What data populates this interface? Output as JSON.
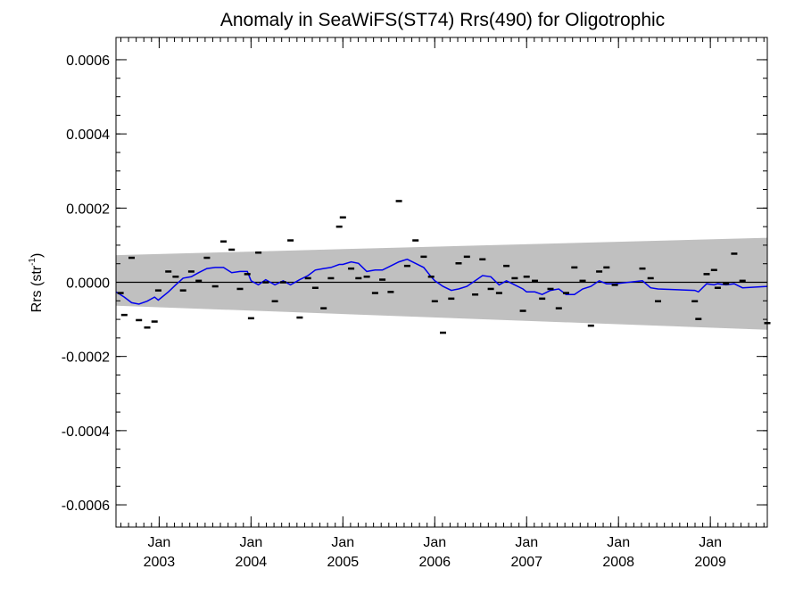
{
  "chart_data": {
    "type": "scatter",
    "title": "Anomaly in SeaWiFS(ST74) Rrs(490) for Oligotrophic",
    "ylabel": {
      "main": "Rrs (str",
      "sup": "-1",
      "end": ")"
    },
    "xlabel": "",
    "xlim": [
      2002.53,
      2009.62
    ],
    "ylim": [
      -0.00066,
      0.00066
    ],
    "y_ticks": [
      {
        "value": -0.0006,
        "label": "-0.0006"
      },
      {
        "value": -0.0004,
        "label": "-0.0004"
      },
      {
        "value": -0.0002,
        "label": "-0.0002"
      },
      {
        "value": 0.0,
        "label": "0.0000"
      },
      {
        "value": 0.0002,
        "label": "0.0002"
      },
      {
        "value": 0.0004,
        "label": "0.0004"
      },
      {
        "value": 0.0006,
        "label": "0.0006"
      }
    ],
    "x_ticks": [
      {
        "value": 2003.0,
        "month": "Jan",
        "year": "2003"
      },
      {
        "value": 2004.0,
        "month": "Jan",
        "year": "2004"
      },
      {
        "value": 2005.0,
        "month": "Jan",
        "year": "2005"
      },
      {
        "value": 2006.0,
        "month": "Jan",
        "year": "2006"
      },
      {
        "value": 2007.0,
        "month": "Jan",
        "year": "2007"
      },
      {
        "value": 2008.0,
        "month": "Jan",
        "year": "2008"
      },
      {
        "value": 2009.0,
        "month": "Jan",
        "year": "2009"
      }
    ],
    "band": {
      "color": "#c0c0c0",
      "x": [
        2002.53,
        2009.62
      ],
      "upper": [
        7.3e-05,
        0.00012
      ],
      "lower": [
        -6.3e-05,
        -0.000128
      ]
    },
    "zero_line": {
      "y": 0.0,
      "color": "#000000"
    },
    "series": [
      {
        "kind": "points",
        "color": "#000000",
        "points": [
          [
            2002.58,
            -2.9e-05
          ],
          [
            2002.62,
            -8.8e-05
          ],
          [
            2002.7,
            6.6e-05
          ],
          [
            2002.78,
            -0.000102
          ],
          [
            2002.87,
            -0.000122
          ],
          [
            2002.95,
            -0.000106
          ],
          [
            2002.99,
            -2.2e-05
          ],
          [
            2003.1,
            2.9e-05
          ],
          [
            2003.18,
            1.5e-05
          ],
          [
            2003.26,
            -2.2e-05
          ],
          [
            2003.35,
            2.9e-05
          ],
          [
            2003.43,
            4e-06
          ],
          [
            2003.52,
            6.6e-05
          ],
          [
            2003.61,
            -1.1e-05
          ],
          [
            2003.7,
            0.00011
          ],
          [
            2003.79,
            8.8e-05
          ],
          [
            2003.88,
            -1.8e-05
          ],
          [
            2003.96,
            2.2e-05
          ],
          [
            2004.0,
            -9.7e-05
          ],
          [
            2004.08,
            8e-05
          ],
          [
            2004.16,
            0.0
          ],
          [
            2004.26,
            -5.1e-05
          ],
          [
            2004.35,
            0.0
          ],
          [
            2004.43,
            0.000113
          ],
          [
            2004.53,
            -9.5e-05
          ],
          [
            2004.62,
            1.1e-05
          ],
          [
            2004.7,
            -1.5e-05
          ],
          [
            2004.79,
            -7e-05
          ],
          [
            2004.87,
            1.1e-05
          ],
          [
            2004.96,
            0.00015
          ],
          [
            2005.0,
            0.000175
          ],
          [
            2005.09,
            3.7e-05
          ],
          [
            2005.17,
            1.1e-05
          ],
          [
            2005.26,
            1.5e-05
          ],
          [
            2005.35,
            -2.9e-05
          ],
          [
            2005.43,
            7e-06
          ],
          [
            2005.52,
            -2.6e-05
          ],
          [
            2005.61,
            0.000219
          ],
          [
            2005.7,
            4.4e-05
          ],
          [
            2005.79,
            0.000113
          ],
          [
            2005.88,
            6.9e-05
          ],
          [
            2005.96,
            1.5e-05
          ],
          [
            2006.0,
            -5.1e-05
          ],
          [
            2006.09,
            -0.000136
          ],
          [
            2006.18,
            -4.4e-05
          ],
          [
            2006.26,
            5.1e-05
          ],
          [
            2006.35,
            6.9e-05
          ],
          [
            2006.44,
            -3.3e-05
          ],
          [
            2006.52,
            6.2e-05
          ],
          [
            2006.61,
            -1.8e-05
          ],
          [
            2006.7,
            -2.9e-05
          ],
          [
            2006.78,
            4.4e-05
          ],
          [
            2006.87,
            1.1e-05
          ],
          [
            2006.96,
            -7.7e-05
          ],
          [
            2007.0,
            1.5e-05
          ],
          [
            2007.09,
            4e-06
          ],
          [
            2007.17,
            -4.4e-05
          ],
          [
            2007.26,
            -1.8e-05
          ],
          [
            2007.35,
            -7e-05
          ],
          [
            2007.43,
            -2.9e-05
          ],
          [
            2007.52,
            4e-05
          ],
          [
            2007.61,
            4e-06
          ],
          [
            2007.7,
            -0.000117
          ],
          [
            2007.79,
            2.9e-05
          ],
          [
            2007.87,
            4e-05
          ],
          [
            2007.96,
            -7e-06
          ],
          [
            2008.26,
            3.7e-05
          ],
          [
            2008.35,
            1.1e-05
          ],
          [
            2008.43,
            -5.1e-05
          ],
          [
            2008.83,
            -5.1e-05
          ],
          [
            2008.87,
            -9.9e-05
          ],
          [
            2008.96,
            2.2e-05
          ],
          [
            2009.04,
            3.3e-05
          ],
          [
            2009.08,
            -1.5e-05
          ],
          [
            2009.17,
            -4e-06
          ],
          [
            2009.26,
            7.7e-05
          ],
          [
            2009.35,
            4e-06
          ],
          [
            2009.62,
            -0.00011
          ]
        ]
      },
      {
        "kind": "line",
        "color": "#0000ee",
        "points": [
          [
            2002.53,
            -2.6e-05
          ],
          [
            2002.62,
            -4e-05
          ],
          [
            2002.7,
            -5.5e-05
          ],
          [
            2002.78,
            -5.9e-05
          ],
          [
            2002.87,
            -5.1e-05
          ],
          [
            2002.95,
            -4e-05
          ],
          [
            2002.99,
            -4.8e-05
          ],
          [
            2003.1,
            -2.6e-05
          ],
          [
            2003.18,
            -7e-06
          ],
          [
            2003.26,
            1.1e-05
          ],
          [
            2003.35,
            1.5e-05
          ],
          [
            2003.43,
            2.6e-05
          ],
          [
            2003.52,
            3.7e-05
          ],
          [
            2003.61,
            4e-05
          ],
          [
            2003.7,
            4e-05
          ],
          [
            2003.79,
            2.6e-05
          ],
          [
            2003.88,
            2.9e-05
          ],
          [
            2003.96,
            2.9e-05
          ],
          [
            2004.0,
            4e-06
          ],
          [
            2004.08,
            -7e-06
          ],
          [
            2004.16,
            7e-06
          ],
          [
            2004.26,
            -7e-06
          ],
          [
            2004.35,
            4e-06
          ],
          [
            2004.43,
            -7e-06
          ],
          [
            2004.53,
            7e-06
          ],
          [
            2004.62,
            1.8e-05
          ],
          [
            2004.7,
            3.3e-05
          ],
          [
            2004.79,
            3.7e-05
          ],
          [
            2004.87,
            4e-05
          ],
          [
            2004.96,
            4.8e-05
          ],
          [
            2005.0,
            4.8e-05
          ],
          [
            2005.09,
            5.5e-05
          ],
          [
            2005.17,
            5.1e-05
          ],
          [
            2005.26,
            2.9e-05
          ],
          [
            2005.35,
            3.3e-05
          ],
          [
            2005.43,
            3.3e-05
          ],
          [
            2005.52,
            4.4e-05
          ],
          [
            2005.61,
            5.5e-05
          ],
          [
            2005.7,
            6.2e-05
          ],
          [
            2005.79,
            5.1e-05
          ],
          [
            2005.88,
            4e-05
          ],
          [
            2005.96,
            1.5e-05
          ],
          [
            2006.0,
            4e-06
          ],
          [
            2006.09,
            -1.1e-05
          ],
          [
            2006.18,
            -2.2e-05
          ],
          [
            2006.26,
            -1.8e-05
          ],
          [
            2006.35,
            -1.1e-05
          ],
          [
            2006.44,
            4e-06
          ],
          [
            2006.52,
            1.8e-05
          ],
          [
            2006.61,
            1.5e-05
          ],
          [
            2006.7,
            -7e-06
          ],
          [
            2006.78,
            4e-06
          ],
          [
            2006.87,
            -7e-06
          ],
          [
            2006.96,
            -1.8e-05
          ],
          [
            2007.0,
            -2.6e-05
          ],
          [
            2007.09,
            -2.6e-05
          ],
          [
            2007.17,
            -3.3e-05
          ],
          [
            2007.26,
            -2.2e-05
          ],
          [
            2007.35,
            -1.8e-05
          ],
          [
            2007.43,
            -3.3e-05
          ],
          [
            2007.52,
            -3.3e-05
          ],
          [
            2007.61,
            -1.8e-05
          ],
          [
            2007.7,
            -1.1e-05
          ],
          [
            2007.79,
            4e-06
          ],
          [
            2007.87,
            -4e-06
          ],
          [
            2007.96,
            -4e-06
          ],
          [
            2008.26,
            4e-06
          ],
          [
            2008.35,
            -1.5e-05
          ],
          [
            2008.43,
            -1.8e-05
          ],
          [
            2008.83,
            -2.2e-05
          ],
          [
            2008.87,
            -2.6e-05
          ],
          [
            2008.96,
            -4e-06
          ],
          [
            2009.04,
            -7e-06
          ],
          [
            2009.08,
            -4e-06
          ],
          [
            2009.17,
            -7e-06
          ],
          [
            2009.26,
            -4e-06
          ],
          [
            2009.35,
            -1.5e-05
          ],
          [
            2009.62,
            -1.1e-05
          ]
        ]
      }
    ]
  }
}
